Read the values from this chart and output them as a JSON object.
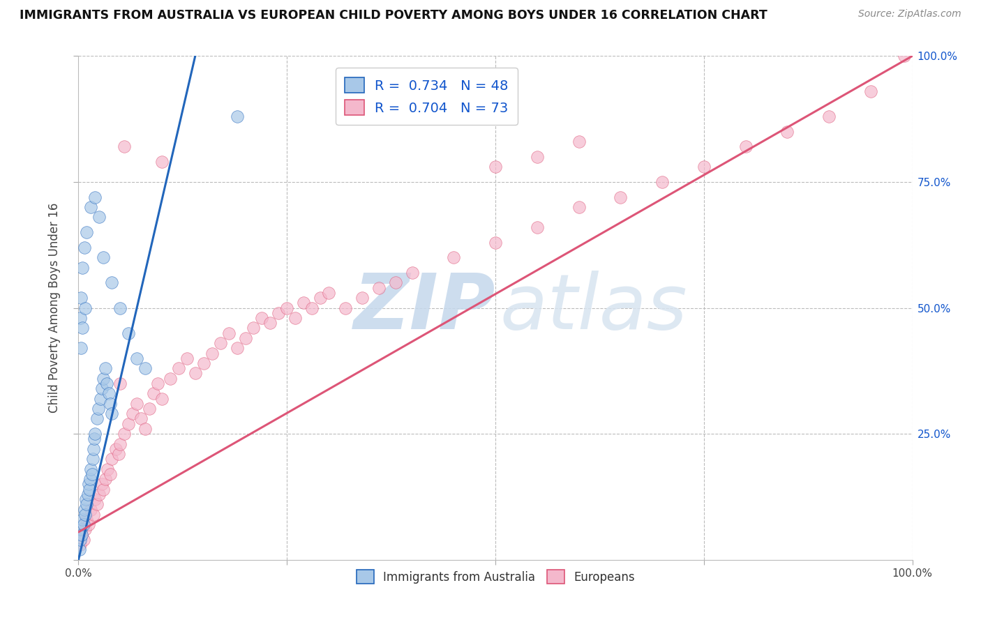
{
  "title": "IMMIGRANTS FROM AUSTRALIA VS EUROPEAN CHILD POVERTY AMONG BOYS UNDER 16 CORRELATION CHART",
  "source_text": "Source: ZipAtlas.com",
  "ylabel": "Child Poverty Among Boys Under 16",
  "blue_label": "Immigrants from Australia",
  "pink_label": "Europeans",
  "blue_R": "0.734",
  "blue_N": "48",
  "pink_R": "0.704",
  "pink_N": "73",
  "blue_scatter_color": "#a8c8e8",
  "pink_scatter_color": "#f4b8cc",
  "blue_line_color": "#2266bb",
  "pink_line_color": "#dd5577",
  "background_color": "#ffffff",
  "grid_color": "#bbbbbb",
  "xlim": [
    0,
    1
  ],
  "ylim": [
    0,
    1
  ],
  "blue_scatter_x": [
    0.001,
    0.002,
    0.003,
    0.004,
    0.005,
    0.006,
    0.007,
    0.008,
    0.009,
    0.01,
    0.011,
    0.012,
    0.013,
    0.014,
    0.015,
    0.016,
    0.017,
    0.018,
    0.019,
    0.02,
    0.022,
    0.024,
    0.026,
    0.028,
    0.03,
    0.032,
    0.034,
    0.036,
    0.038,
    0.04,
    0.002,
    0.003,
    0.005,
    0.007,
    0.01,
    0.015,
    0.02,
    0.025,
    0.03,
    0.04,
    0.05,
    0.06,
    0.07,
    0.08,
    0.19,
    0.003,
    0.005,
    0.008
  ],
  "blue_scatter_y": [
    0.02,
    0.04,
    0.06,
    0.05,
    0.08,
    0.07,
    0.1,
    0.09,
    0.12,
    0.11,
    0.13,
    0.15,
    0.14,
    0.16,
    0.18,
    0.17,
    0.2,
    0.22,
    0.24,
    0.25,
    0.28,
    0.3,
    0.32,
    0.34,
    0.36,
    0.38,
    0.35,
    0.33,
    0.31,
    0.29,
    0.48,
    0.52,
    0.58,
    0.62,
    0.65,
    0.7,
    0.72,
    0.68,
    0.6,
    0.55,
    0.5,
    0.45,
    0.4,
    0.38,
    0.88,
    0.42,
    0.46,
    0.5
  ],
  "pink_scatter_x": [
    0.002,
    0.004,
    0.006,
    0.008,
    0.01,
    0.012,
    0.015,
    0.018,
    0.02,
    0.022,
    0.025,
    0.028,
    0.03,
    0.032,
    0.035,
    0.038,
    0.04,
    0.045,
    0.048,
    0.05,
    0.055,
    0.06,
    0.065,
    0.07,
    0.075,
    0.08,
    0.085,
    0.09,
    0.095,
    0.1,
    0.11,
    0.12,
    0.13,
    0.14,
    0.15,
    0.16,
    0.17,
    0.18,
    0.19,
    0.2,
    0.21,
    0.22,
    0.23,
    0.24,
    0.25,
    0.26,
    0.27,
    0.28,
    0.29,
    0.3,
    0.32,
    0.34,
    0.36,
    0.38,
    0.4,
    0.45,
    0.5,
    0.55,
    0.6,
    0.65,
    0.7,
    0.75,
    0.8,
    0.85,
    0.9,
    0.95,
    0.99,
    0.05,
    0.1,
    0.5,
    0.55,
    0.6,
    0.055
  ],
  "pink_scatter_y": [
    0.03,
    0.05,
    0.04,
    0.06,
    0.08,
    0.07,
    0.1,
    0.09,
    0.12,
    0.11,
    0.13,
    0.15,
    0.14,
    0.16,
    0.18,
    0.17,
    0.2,
    0.22,
    0.21,
    0.23,
    0.25,
    0.27,
    0.29,
    0.31,
    0.28,
    0.26,
    0.3,
    0.33,
    0.35,
    0.32,
    0.36,
    0.38,
    0.4,
    0.37,
    0.39,
    0.41,
    0.43,
    0.45,
    0.42,
    0.44,
    0.46,
    0.48,
    0.47,
    0.49,
    0.5,
    0.48,
    0.51,
    0.5,
    0.52,
    0.53,
    0.5,
    0.52,
    0.54,
    0.55,
    0.57,
    0.6,
    0.63,
    0.66,
    0.7,
    0.72,
    0.75,
    0.78,
    0.82,
    0.85,
    0.88,
    0.93,
    1.0,
    0.35,
    0.79,
    0.78,
    0.8,
    0.83,
    0.82
  ],
  "blue_trend_x0": 0.0,
  "blue_trend_y0": 0.0,
  "blue_trend_x1": 0.14,
  "blue_trend_y1": 1.0,
  "pink_trend_x0": 0.0,
  "pink_trend_y0": 0.055,
  "pink_trend_x1": 1.0,
  "pink_trend_y1": 1.0,
  "legend_R_color": "#1155cc",
  "legend_N_color": "#1155cc",
  "right_tick_color": "#1155cc",
  "figsize": [
    14.06,
    8.92
  ],
  "dpi": 100
}
